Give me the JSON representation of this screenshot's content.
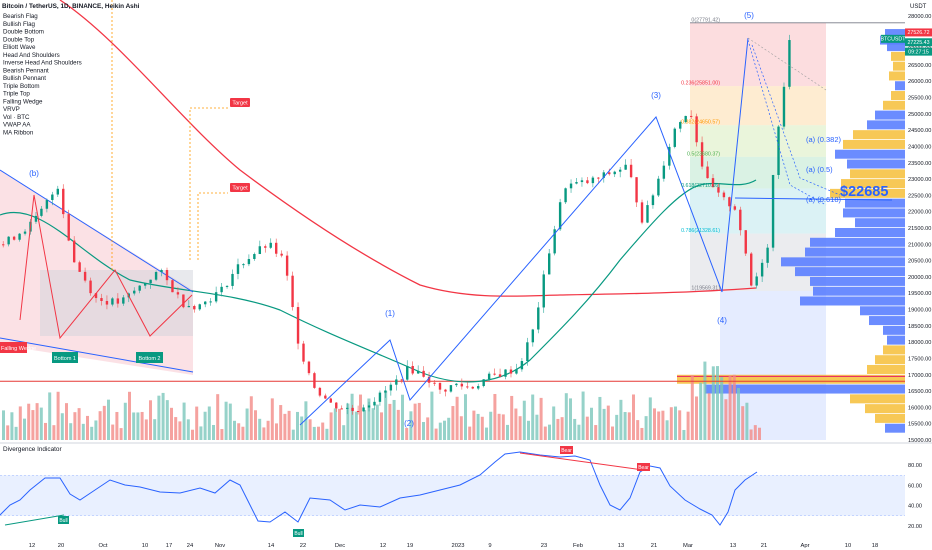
{
  "header": {
    "symbol_title": "Bitcoin / TetherUS, 1D, BINANCE, Heikin Ashi",
    "currency": "USDT"
  },
  "indicators_legend": [
    "Bearish Flag",
    "Bullish Flag",
    "Double Bottom",
    "Double Top",
    "Elliott Wave",
    "Head And Shoulders",
    "Inverse Head And Shoulders",
    "Bearish Pennant",
    "Bullish Pennant",
    "Triple Bottom",
    "Triple Top",
    "Falling Wedge",
    "VRVP",
    "Vol · BTC",
    "VWAP AA",
    "MA Ribbon"
  ],
  "price_axis": {
    "ticks": [
      "28000.00",
      "27500.00",
      "27000.00",
      "26500.00",
      "26000.00",
      "25500.00",
      "25000.00",
      "24500.00",
      "24000.00",
      "23500.00",
      "23000.00",
      "22500.00",
      "22000.00",
      "21500.00",
      "21000.00",
      "20500.00",
      "20000.00",
      "19500.00",
      "19000.00",
      "18500.00",
      "18000.00",
      "17500.00",
      "17000.00",
      "16500.00",
      "16000.00",
      "15500.00",
      "15000.00"
    ],
    "badges": [
      {
        "text": "27526.72",
        "color": "#f23645"
      },
      {
        "text": "BTCUSDT",
        "color": "#089981"
      },
      {
        "text": "27225.43",
        "color": "#089981"
      },
      {
        "text": "09:27:15",
        "color": "#089981"
      }
    ]
  },
  "time_axis": [
    "12",
    "20",
    "Oct",
    "10",
    "17",
    "24",
    "Nov",
    "14",
    "22",
    "Dec",
    "12",
    "19",
    "2023",
    "9",
    "23",
    "Feb",
    "13",
    "21",
    "Mar",
    "13",
    "21",
    "Apr",
    "10",
    "18"
  ],
  "annotations": {
    "wave_labels": [
      "(b)",
      "(1)",
      "(2)",
      "(3)",
      "(4)",
      "(5)"
    ],
    "targets": [
      "Target",
      "Target"
    ],
    "patterns": [
      "Falling Wedge",
      "Bottom 1",
      "Bottom 2"
    ],
    "fib_levels": [
      {
        "label": "0(27791.42)",
        "color": "#787b86"
      },
      {
        "label": "0.236(25851.00)",
        "color": "#f23645"
      },
      {
        "label": "0.382(24650.57)",
        "color": "#ff9800"
      },
      {
        "label": "0.5(23680.37)",
        "color": "#4caf50"
      },
      {
        "label": "0.618(22710.16)",
        "color": "#089981"
      },
      {
        "label": "0.786(21328.61)",
        "color": "#00bcd4"
      },
      {
        "label": "1(19569.31)",
        "color": "#787b86"
      }
    ],
    "sub_waves": [
      "(a) (0.382)",
      "(a) (0.5)",
      "(a) (0.618)"
    ],
    "price_callout": "$22685"
  },
  "osc": {
    "title": "Divergence Indicator",
    "ticks": [
      "80.00",
      "60.00",
      "40.00",
      "20.00"
    ],
    "bull_labels": [
      "Bull",
      "Bull"
    ],
    "bear_labels": [
      "Bear",
      "Bear"
    ]
  },
  "colors": {
    "up": "#26a69a",
    "down": "#ef5350",
    "ma_red": "#f23645",
    "ma_green": "#089981",
    "wave": "#2962ff",
    "vp_blue": "#5b7fff",
    "vp_yellow": "#f6c244",
    "vp_orange": "#f5a524"
  },
  "chart_data": {
    "type": "line",
    "title": "Bitcoin / TetherUS, 1D, BINANCE, Heikin Ashi",
    "x": [
      "Sep 12",
      "Sep 20",
      "Oct",
      "Oct 10",
      "Oct 17",
      "Oct 24",
      "Nov",
      "Nov 14",
      "Nov 22",
      "Dec",
      "Dec 12",
      "Dec 19",
      "2023",
      "Jan 9",
      "Jan 23",
      "Feb",
      "Feb 13",
      "Feb 21",
      "Mar",
      "Mar 13",
      "Mar 21"
    ],
    "series": [
      {
        "values": [
          21500,
          19200,
          19300,
          19100,
          19400,
          20500,
          20300,
          16500,
          16200,
          16900,
          17200,
          16800,
          16550,
          17200,
          22900,
          23200,
          24500,
          24400,
          22300,
          19900,
          27500
        ]
      }
    ],
    "ylabel": "USDT",
    "ylim": [
      15000,
      28000
    ],
    "elliott_wave": {
      "(1)": 18400,
      "(2)": 16500,
      "(3)": 25250,
      "(4)": 19550,
      "(5)": 27800
    },
    "fibonacci": [
      27791.42,
      25851.0,
      24650.57,
      23680.37,
      22710.16,
      21328.61,
      19569.31
    ],
    "targets": [
      "Target",
      "Target"
    ],
    "divergence_indicator": {
      "ticks": [
        80,
        60,
        40,
        20
      ]
    }
  }
}
